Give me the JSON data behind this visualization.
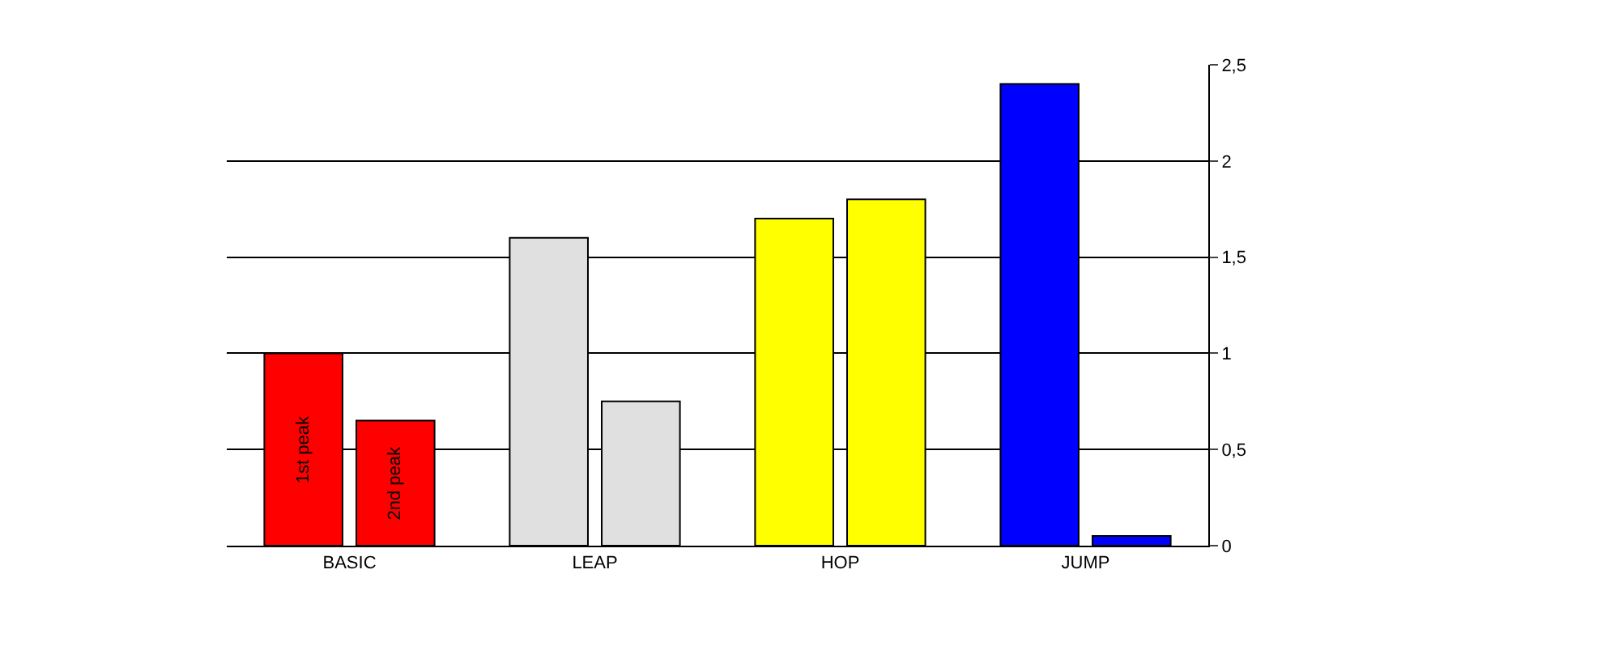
{
  "chart_data": {
    "type": "bar",
    "categories": [
      "BASIC",
      "LEAP",
      "HOP",
      "JUMP"
    ],
    "series": [
      {
        "name": "1st peak",
        "colors": [
          "#ff0000",
          "#e0e0e0",
          "#ffff00",
          "#0000ff"
        ],
        "values": [
          1.0,
          1.6,
          1.7,
          2.4
        ]
      },
      {
        "name": "2nd peak",
        "colors": [
          "#ff0000",
          "#e0e0e0",
          "#ffff00",
          "#0000ff"
        ],
        "values": [
          0.65,
          0.75,
          1.8,
          0.05
        ]
      }
    ],
    "ylim": [
      0,
      2.5
    ],
    "yticks": [
      0,
      {
        "value": 0.5,
        "label": "0,5"
      },
      1,
      {
        "value": 1.5,
        "label": "1,5"
      },
      2,
      {
        "value": 2.5,
        "label": "2,5"
      }
    ],
    "grid": "y",
    "legend": false
  }
}
